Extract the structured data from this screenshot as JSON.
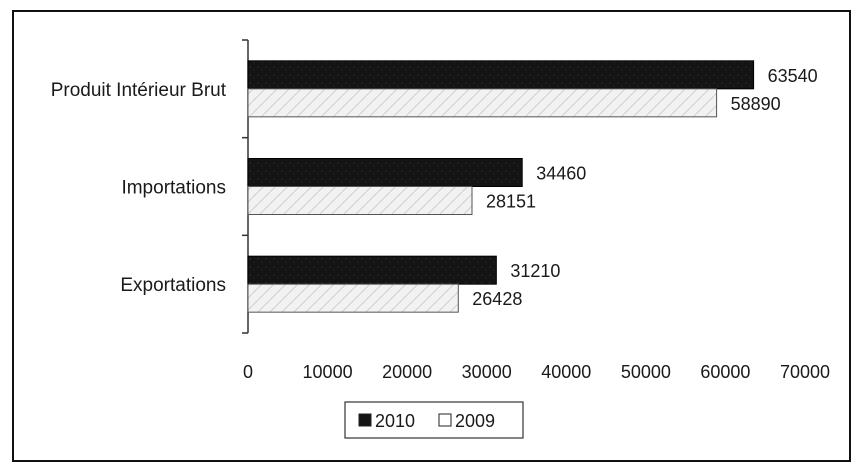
{
  "chart_data": {
    "type": "bar",
    "orientation": "horizontal",
    "categories": [
      "Produit Intérieur Brut",
      "Importations",
      "Exportations"
    ],
    "series": [
      {
        "name": "2010",
        "values": [
          63540,
          34460,
          31210
        ],
        "color": "#141414"
      },
      {
        "name": "2009",
        "values": [
          58890,
          28151,
          26428
        ],
        "color": "#f2f2f2"
      }
    ],
    "xlim": [
      0,
      70000
    ],
    "xticks": [
      "0",
      "10000",
      "20000",
      "30000",
      "40000",
      "50000",
      "60000",
      "70000"
    ],
    "legend_position": "bottom",
    "grid": false
  }
}
